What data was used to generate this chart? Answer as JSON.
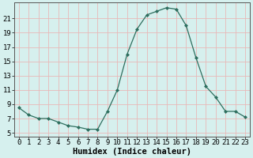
{
  "x": [
    0,
    1,
    2,
    3,
    4,
    5,
    6,
    7,
    8,
    9,
    10,
    11,
    12,
    13,
    14,
    15,
    16,
    17,
    18,
    19,
    20,
    21,
    22,
    23
  ],
  "y": [
    8.5,
    7.5,
    7.0,
    7.0,
    6.5,
    6.0,
    5.8,
    5.5,
    5.5,
    8.0,
    11.0,
    16.0,
    19.5,
    21.5,
    22.0,
    22.5,
    22.3,
    20.0,
    15.5,
    11.5,
    10.0,
    8.0,
    8.0,
    7.2
  ],
  "line_color": "#2d6e5e",
  "marker": "D",
  "marker_size": 2.0,
  "bg_color": "#d6f0ee",
  "grid_color": "#e8b8b8",
  "xlabel": "Humidex (Indice chaleur)",
  "xlim": [
    -0.5,
    23.5
  ],
  "ylim": [
    4.5,
    23.2
  ],
  "yticks": [
    5,
    7,
    9,
    11,
    13,
    15,
    17,
    19,
    21
  ],
  "xticks": [
    0,
    1,
    2,
    3,
    4,
    5,
    6,
    7,
    8,
    9,
    10,
    11,
    12,
    13,
    14,
    15,
    16,
    17,
    18,
    19,
    20,
    21,
    22,
    23
  ],
  "xtick_labels": [
    "0",
    "1",
    "2",
    "3",
    "4",
    "5",
    "6",
    "7",
    "8",
    "9",
    "10",
    "11",
    "12",
    "13",
    "14",
    "15",
    "16",
    "17",
    "18",
    "19",
    "20",
    "21",
    "22",
    "23"
  ],
  "tick_fontsize": 6.5,
  "xlabel_fontsize": 7.5
}
